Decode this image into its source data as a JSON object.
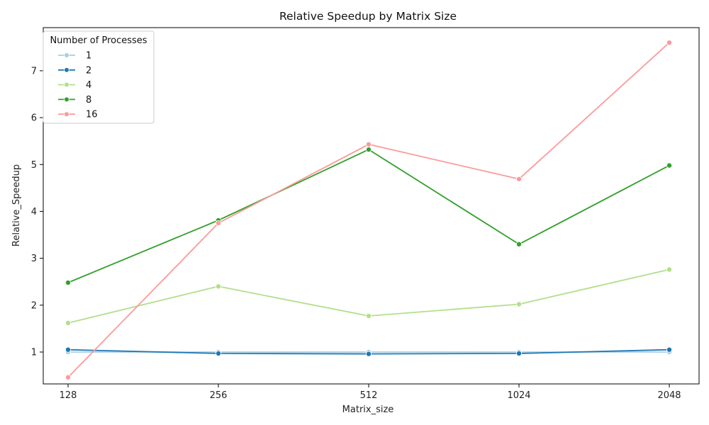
{
  "chart_data": {
    "type": "line",
    "title": "Relative Speedup by Matrix Size",
    "xlabel": "Matrix_size",
    "ylabel": "Relative_Speedup",
    "categories": [
      "128",
      "256",
      "512",
      "1024",
      "2048"
    ],
    "ylim": [
      0.32,
      7.92
    ],
    "yticks": [
      1,
      2,
      3,
      4,
      5,
      6,
      7
    ],
    "grid": false,
    "legend": {
      "title": "Number of Processes",
      "placement": "top-left"
    },
    "series": [
      {
        "name": "1",
        "color": "#a6cee3",
        "values": [
          1.0,
          1.0,
          1.0,
          1.0,
          1.0
        ]
      },
      {
        "name": "2",
        "color": "#1f78b4",
        "values": [
          1.05,
          0.97,
          0.96,
          0.97,
          1.05
        ]
      },
      {
        "name": "4",
        "color": "#b2df8a",
        "values": [
          1.62,
          2.4,
          1.77,
          2.02,
          2.76
        ]
      },
      {
        "name": "8",
        "color": "#33a02c",
        "values": [
          2.48,
          3.81,
          5.32,
          3.3,
          4.98
        ]
      },
      {
        "name": "16",
        "color": "#fb9a99",
        "values": [
          0.46,
          3.75,
          5.43,
          4.69,
          7.6
        ]
      }
    ]
  }
}
